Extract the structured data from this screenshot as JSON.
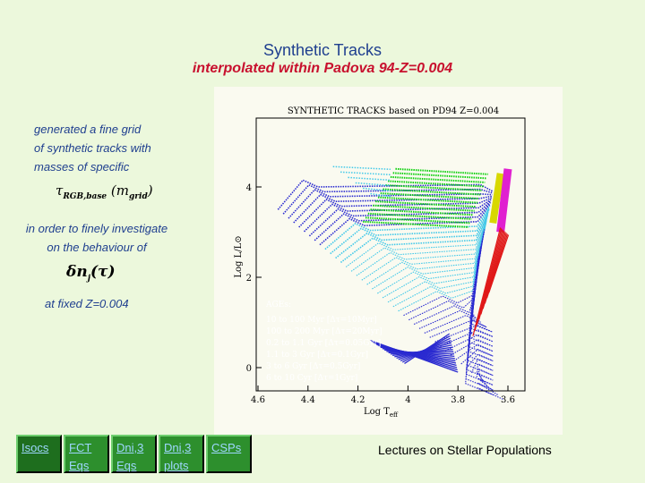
{
  "page": {
    "title": "Synthetic Tracks",
    "subtitle": "interpolated within Padova 94-Z=0.004"
  },
  "text": {
    "intro_lines": [
      "generated a fine grid",
      "of synthetic tracks with",
      "masses of specific"
    ],
    "middle_lines": [
      "in order to finely investigate",
      "on the behaviour of"
    ],
    "fixed_z": "at fixed Z=0.004"
  },
  "formulas": {
    "tau": "τ",
    "tau_sub": "RGB,base",
    "tau_arg": "(m",
    "tau_arg_sub": "grid",
    "tau_close": ")",
    "dn": "δn",
    "dn_sub": "j",
    "dn_arg": "(τ)"
  },
  "plot": {
    "title": "SYNTHETIC TRACKS based on   PD94  Z=0.004",
    "x_label": "Log T",
    "x_label_sub": "eff",
    "y_label": "Log L/L⊙",
    "x_ticks": [
      "4.6",
      "4.4",
      "4.2",
      "4",
      "3.8",
      "3.6"
    ],
    "y_ticks": [
      "4",
      "2",
      "0"
    ],
    "legend_title": "AGEs:",
    "legend": [
      "10  to  100 Myr [Δτ=10Myr]",
      "100  to  200 Myr [Δτ=20Myr]",
      "0.2  to 1.1 Gyr  [Δτ=0.05Gyr]",
      "1.1  to  3 Gyr  [Δτ=0.1Gyr]",
      "3 to 6 Gyr  [Δτ=0.5Gyr]",
      "6 to 10 Cyr  [Δτ=1Gyr]"
    ],
    "colors": {
      "blue": "#2a2ad0",
      "light_blue": "#40c8e8",
      "green": "#10d010",
      "yellow": "#d8d800",
      "magenta": "#e020d0",
      "red": "#e01818"
    }
  },
  "nav": {
    "buttons": [
      {
        "label": "Isocs"
      },
      {
        "label": "FCT Eqs"
      },
      {
        "label": "Dni,3 Eqs"
      },
      {
        "label": "Dni,3 plots"
      },
      {
        "label": "CSPs"
      }
    ]
  },
  "footer": "Lectures on Stellar Populations"
}
